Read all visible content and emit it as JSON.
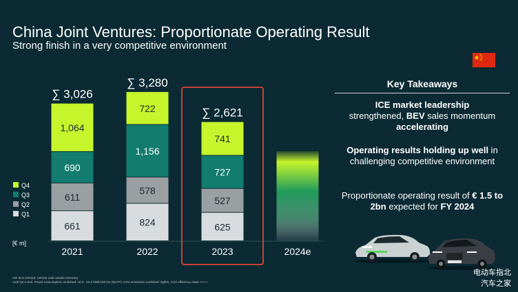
{
  "header": {
    "title": "China Joint Ventures: Proportionate Operating Result",
    "subtitle": "Strong finish in a very competitive environment"
  },
  "colors": {
    "background": "#0b2a33",
    "q1": "#d9dcde",
    "q2": "#9a9fa1",
    "q3": "#127c6e",
    "q4": "#c6f52c",
    "highlight_box": "#e0443a",
    "flag": "#de2910"
  },
  "chart_data": {
    "type": "bar",
    "stacked": true,
    "categories": [
      "2021",
      "2022",
      "2023",
      "2024e"
    ],
    "series": [
      {
        "name": "Q1",
        "values": [
          661,
          824,
          625,
          null
        ]
      },
      {
        "name": "Q2",
        "values": [
          611,
          578,
          527,
          null
        ]
      },
      {
        "name": "Q3",
        "values": [
          690,
          1156,
          727,
          null
        ]
      },
      {
        "name": "Q4",
        "values": [
          1064,
          722,
          741,
          null
        ]
      }
    ],
    "totals": [
      "∑ 3,026",
      "∑ 3,280",
      "∑ 2,621",
      ""
    ],
    "ylabel": "[€ m]",
    "legend": [
      "Q4",
      "Q3",
      "Q2",
      "Q1"
    ],
    "legend_position": "left",
    "highlight_category": "2023",
    "forecast_category": "2024e"
  },
  "takeaways": {
    "heading": "Key Takeaways",
    "item1": {
      "a": "ICE market leadership",
      "b": " strengthened, ",
      "c": "BEV",
      "d": " sales momentum ",
      "e": "accelerating"
    },
    "item2": {
      "a": "Operating results holding up well",
      "b": " in challenging competitive environment"
    },
    "item3": {
      "a": "Proportionate operating result of ",
      "b": "€ 1.5 to 2bn",
      "c": " expected for ",
      "d": "FY 2024"
    }
  },
  "footnotes": {
    "line1": "VW ID.6 CROZZ: Vehicle sold outside Germany",
    "line2": "Audi Q6 e-tron: Power consumption combined: 18.3 - 15.2 kWh/100 km (WLTP); CO2 emissions combined: 0g/km, CO2 efficiency class: A+++"
  },
  "watermark": {
    "line1": "电动车指北",
    "line2": "汽车之家"
  }
}
